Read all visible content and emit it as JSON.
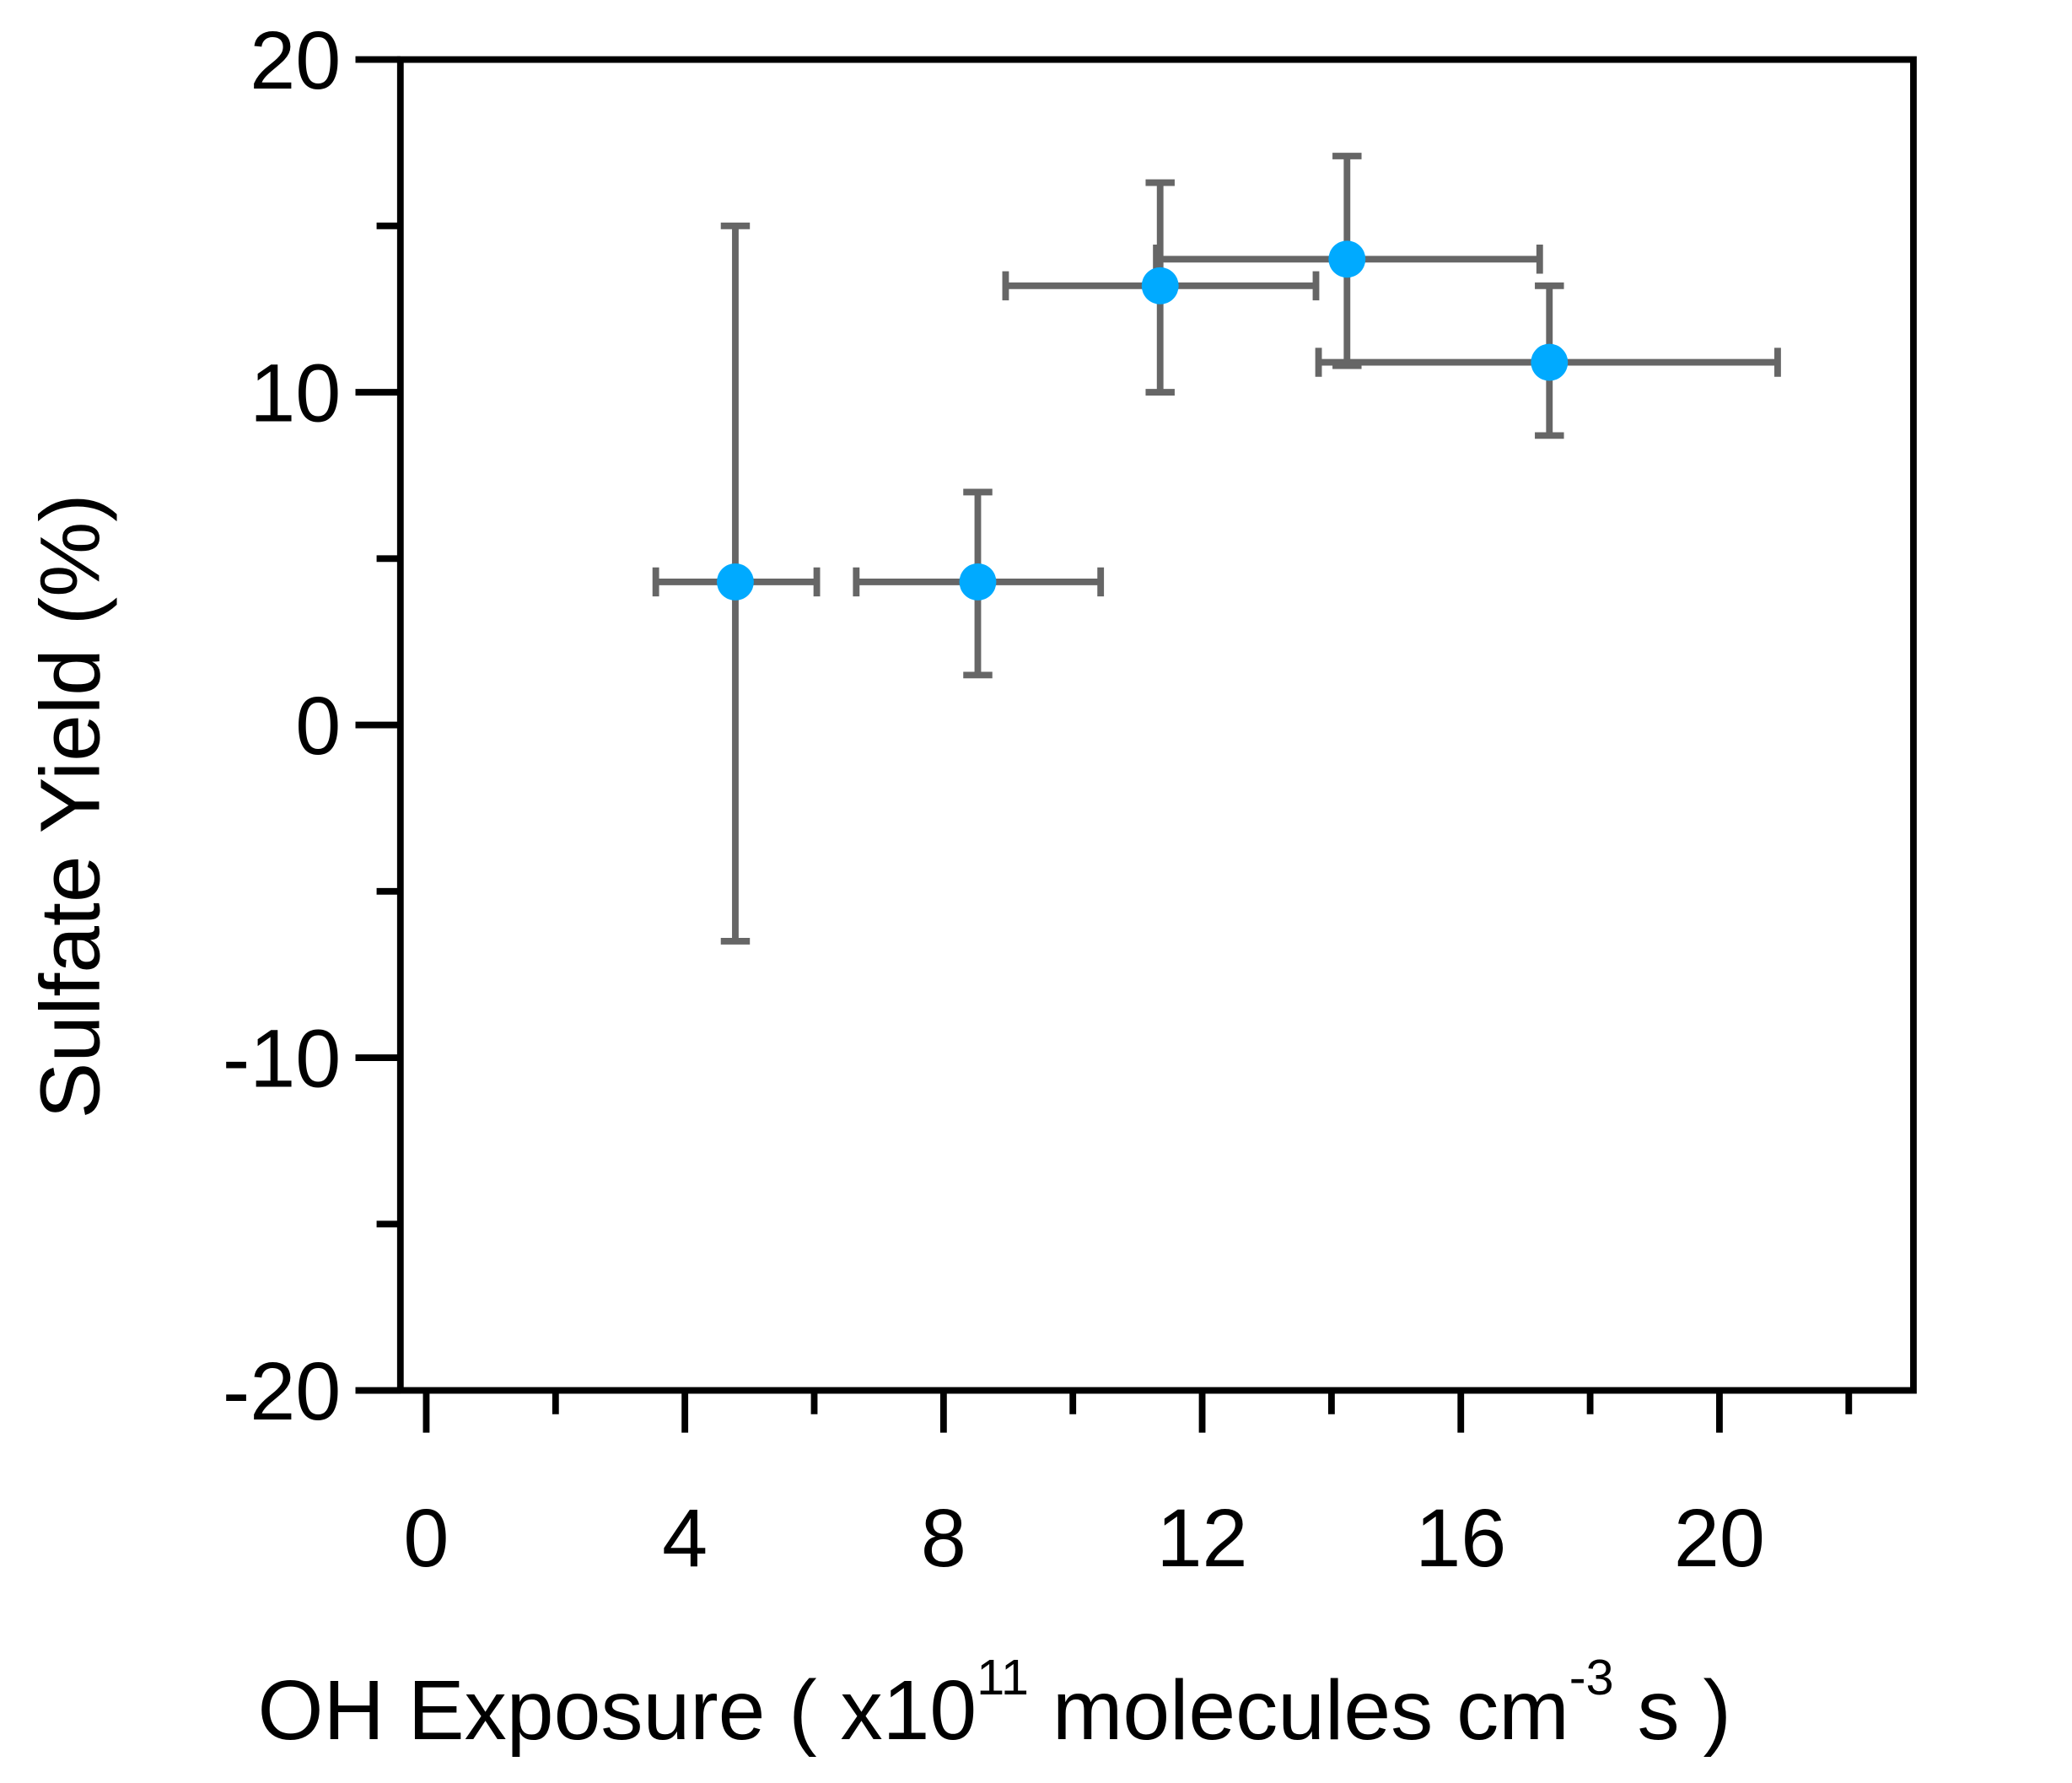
{
  "chart_data": {
    "type": "scatter",
    "title": "",
    "xlabel": "OH Exposure ( x10",
    "xlabel_sup1": "11",
    "xlabel_mid": " molecules cm",
    "xlabel_sup2": "-3",
    "xlabel_end": " s )",
    "ylabel": "Sulfate Yield (%)",
    "xlim": [
      -0.4,
      23
    ],
    "ylim": [
      -20,
      20
    ],
    "x_ticks": [
      0,
      4,
      8,
      12,
      16,
      20
    ],
    "x_tick_labels": [
      "0",
      "4",
      "8",
      "12",
      "16",
      "20"
    ],
    "x_minor_ticks": [
      2,
      6,
      10,
      14,
      18,
      22
    ],
    "y_ticks": [
      20,
      10,
      0,
      -10,
      -20
    ],
    "y_tick_labels": [
      "20",
      "10",
      "0",
      "-10",
      "-20"
    ],
    "y_minor_ticks": [
      15,
      5,
      -5,
      -15
    ],
    "grid": false,
    "colors": {
      "marker": "#00AAFF",
      "error_bar": "#666666",
      "axis": "#000000"
    },
    "points": [
      {
        "x": 4.78,
        "y": 4.3,
        "x_low": 3.55,
        "x_high": 6.04,
        "y_low": -6.5,
        "y_high": 15.0
      },
      {
        "x": 8.53,
        "y": 4.3,
        "x_low": 6.65,
        "x_high": 10.43,
        "y_low": 1.5,
        "y_high": 7.0
      },
      {
        "x": 11.35,
        "y": 13.2,
        "x_low": 8.96,
        "x_high": 13.76,
        "y_low": 10.0,
        "y_high": 16.3
      },
      {
        "x": 14.24,
        "y": 14.0,
        "x_low": 11.29,
        "x_high": 17.22,
        "y_low": 10.8,
        "y_high": 17.1
      },
      {
        "x": 17.37,
        "y": 10.9,
        "x_low": 13.8,
        "x_high": 20.9,
        "y_low": 8.7,
        "y_high": 13.2
      }
    ]
  }
}
